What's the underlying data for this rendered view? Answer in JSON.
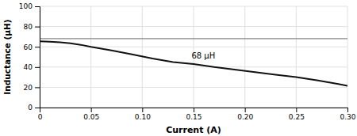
{
  "chart_data": {
    "type": "line",
    "xlabel": "Current (A)",
    "ylabel": "Inductance (μH)",
    "x": [
      0.0,
      0.005,
      0.01,
      0.02,
      0.03,
      0.04,
      0.05,
      0.07,
      0.09,
      0.11,
      0.13,
      0.15,
      0.17,
      0.19,
      0.21,
      0.23,
      0.25,
      0.27,
      0.29,
      0.3
    ],
    "values": [
      65.5,
      65.3,
      65.0,
      64.5,
      63.5,
      62.0,
      60.0,
      56.5,
      52.5,
      48.5,
      45.0,
      43.0,
      40.0,
      37.5,
      35.0,
      32.5,
      30.0,
      27.0,
      23.5,
      21.5
    ],
    "color": "#111111",
    "xlim": [
      0,
      0.3
    ],
    "ylim": [
      0,
      100
    ],
    "xticks": [
      0,
      0.05,
      {
        "value": 0.1,
        "label": "0.10"
      },
      0.15,
      {
        "value": 0.2,
        "label": "0.20"
      },
      0.25,
      {
        "value": 0.3,
        "label": "0.30"
      }
    ],
    "yticks": [
      0,
      20,
      40,
      60,
      80,
      100
    ],
    "grid": true,
    "reference_lines": [
      {
        "y": 68,
        "color": "#888888"
      }
    ],
    "annotations": [
      {
        "text": "68 μH",
        "x": 0.148,
        "y": 51.5
      }
    ]
  }
}
